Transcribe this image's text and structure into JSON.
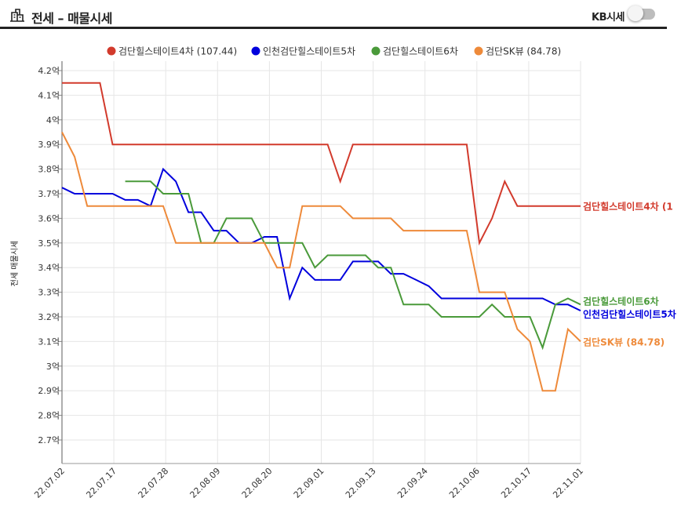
{
  "header": {
    "title": "전세 – 매물시세",
    "icon": "building-icon",
    "kb_label": "KB시세",
    "kb_toggle_on": false
  },
  "chart_data": {
    "type": "line",
    "ylabel": "전세 매물시세",
    "ylim": [
      2.62,
      4.25
    ],
    "yticks": [
      2.7,
      2.8,
      2.9,
      3.0,
      3.1,
      3.2,
      3.3,
      3.4,
      3.5,
      3.6,
      3.7,
      3.8,
      3.9,
      4.0,
      4.1,
      4.2
    ],
    "ytick_labels": [
      "2.7억",
      "2.8억",
      "2.9억",
      "3억",
      "3.1억",
      "3.2억",
      "3.3억",
      "3.4억",
      "3.5억",
      "3.6억",
      "3.7억",
      "3.8억",
      "3.9억",
      "4억",
      "4.1억",
      "4.2억"
    ],
    "x_labels": [
      "22.07.02",
      "22.07.17",
      "22.07.28",
      "22.08.09",
      "22.08.20",
      "22.09.01",
      "22.09.13",
      "22.09.24",
      "22.10.06",
      "22.10.17",
      "22.11.01"
    ],
    "grid": true,
    "legend_position": "top-center",
    "series": [
      {
        "name": "검단힐스테이트4차 (107.44)",
        "end_label": "검단힐스테이트4차 (1",
        "color": "#d23a2c",
        "points": [
          [
            0,
            4.15
          ],
          [
            3,
            4.15
          ],
          [
            4,
            3.9
          ],
          [
            21,
            3.9
          ],
          [
            22,
            3.75
          ],
          [
            23,
            3.9
          ],
          [
            32,
            3.9
          ],
          [
            33,
            3.5
          ],
          [
            34,
            3.6
          ],
          [
            35,
            3.75
          ],
          [
            36,
            3.65
          ],
          [
            41,
            3.65
          ]
        ]
      },
      {
        "name": "인천검단힐스테이트5차",
        "end_label": "인천검단힐스테이트5차",
        "color": "#0000dd",
        "points": [
          [
            0,
            3.725
          ],
          [
            1,
            3.7
          ],
          [
            4,
            3.7
          ],
          [
            5,
            3.675
          ],
          [
            6,
            3.675
          ],
          [
            7,
            3.65
          ],
          [
            8,
            3.8
          ],
          [
            9,
            3.75
          ],
          [
            10,
            3.625
          ],
          [
            11,
            3.625
          ],
          [
            12,
            3.55
          ],
          [
            13,
            3.55
          ],
          [
            14,
            3.5
          ],
          [
            15,
            3.5
          ],
          [
            16,
            3.525
          ],
          [
            17,
            3.525
          ],
          [
            18,
            3.275
          ],
          [
            19,
            3.4
          ],
          [
            20,
            3.35
          ],
          [
            22,
            3.35
          ],
          [
            23,
            3.425
          ],
          [
            25,
            3.425
          ],
          [
            26,
            3.375
          ],
          [
            27,
            3.375
          ],
          [
            28,
            3.35
          ],
          [
            29,
            3.325
          ],
          [
            30,
            3.275
          ],
          [
            38,
            3.275
          ],
          [
            39,
            3.25
          ],
          [
            40,
            3.25
          ],
          [
            41,
            3.225
          ]
        ]
      },
      {
        "name": "검단힐스테이트6차",
        "end_label": "검단힐스테이트6차",
        "color": "#4a9a3a",
        "points": [
          [
            5,
            3.75
          ],
          [
            7,
            3.75
          ],
          [
            8,
            3.7
          ],
          [
            10,
            3.7
          ],
          [
            11,
            3.5
          ],
          [
            12,
            3.5
          ],
          [
            13,
            3.6
          ],
          [
            15,
            3.6
          ],
          [
            16,
            3.5
          ],
          [
            19,
            3.5
          ],
          [
            20,
            3.4
          ],
          [
            21,
            3.45
          ],
          [
            24,
            3.45
          ],
          [
            25,
            3.4
          ],
          [
            26,
            3.4
          ],
          [
            27,
            3.25
          ],
          [
            29,
            3.25
          ],
          [
            30,
            3.2
          ],
          [
            32,
            3.2
          ],
          [
            33,
            3.2
          ],
          [
            34,
            3.25
          ],
          [
            35,
            3.2
          ],
          [
            37,
            3.2
          ],
          [
            38,
            3.075
          ],
          [
            39,
            3.25
          ],
          [
            40,
            3.275
          ],
          [
            41,
            3.25
          ]
        ]
      },
      {
        "name": "검단SK뷰 (84.78)",
        "end_label": "검단SK뷰 (84.78)",
        "color": "#ee8a3a",
        "points": [
          [
            0,
            3.95
          ],
          [
            1,
            3.85
          ],
          [
            2,
            3.65
          ],
          [
            8,
            3.65
          ],
          [
            9,
            3.5
          ],
          [
            16,
            3.5
          ],
          [
            17,
            3.4
          ],
          [
            18,
            3.4
          ],
          [
            19,
            3.65
          ],
          [
            22,
            3.65
          ],
          [
            23,
            3.6
          ],
          [
            26,
            3.6
          ],
          [
            27,
            3.55
          ],
          [
            32,
            3.55
          ],
          [
            33,
            3.3
          ],
          [
            35,
            3.3
          ],
          [
            36,
            3.15
          ],
          [
            37,
            3.1
          ],
          [
            38,
            2.9
          ],
          [
            39,
            2.9
          ],
          [
            40,
            3.15
          ],
          [
            41,
            3.1
          ]
        ]
      }
    ]
  }
}
